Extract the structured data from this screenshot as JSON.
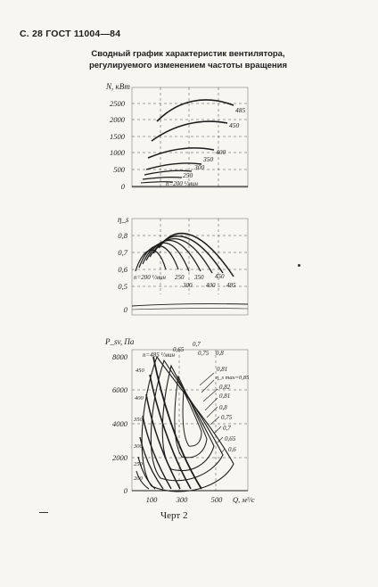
{
  "page": {
    "header": "С. 28 ГОСТ 11004—84",
    "title_line1": "Сводный график характеристик вентилятора,",
    "title_line2": "регулируемого изменением частоты вращения",
    "caption": "Черт 2"
  },
  "chart_data": [
    {
      "type": "line",
      "ylabel": "N, кВт",
      "y_ticks": [
        "2500",
        "2000",
        "1500",
        "1000",
        "500",
        "0"
      ],
      "series_labels": [
        "485",
        "450",
        "400",
        "350",
        "300",
        "250",
        "n=200 ¹/мин"
      ]
    },
    {
      "type": "line",
      "ylabel": "η_s",
      "y_ticks": [
        "0,8",
        "0,7",
        "0,6",
        "0,5",
        "0"
      ],
      "series_labels": [
        "n=200 ¹/мин",
        "250",
        "300",
        "350",
        "400",
        "450",
        "485"
      ]
    },
    {
      "type": "line",
      "ylabel": "P_sv, Па",
      "xlabel": "Q, м³/с",
      "y_ticks": [
        "8000",
        "6000",
        "4000",
        "2000",
        "0"
      ],
      "x_ticks": [
        "100",
        "300",
        "500"
      ],
      "speed_labels": [
        "n=485 ¹/мин",
        "450",
        "400",
        "350",
        "300",
        "250",
        "200"
      ],
      "efficiency_labels": [
        "0,65",
        "0,7",
        "0,75",
        "0,8",
        "0,81",
        "η_s max=0,85",
        "0,82",
        "0,81",
        "0,8",
        "0,75",
        "0,7",
        "0,65",
        "0,6"
      ]
    }
  ]
}
